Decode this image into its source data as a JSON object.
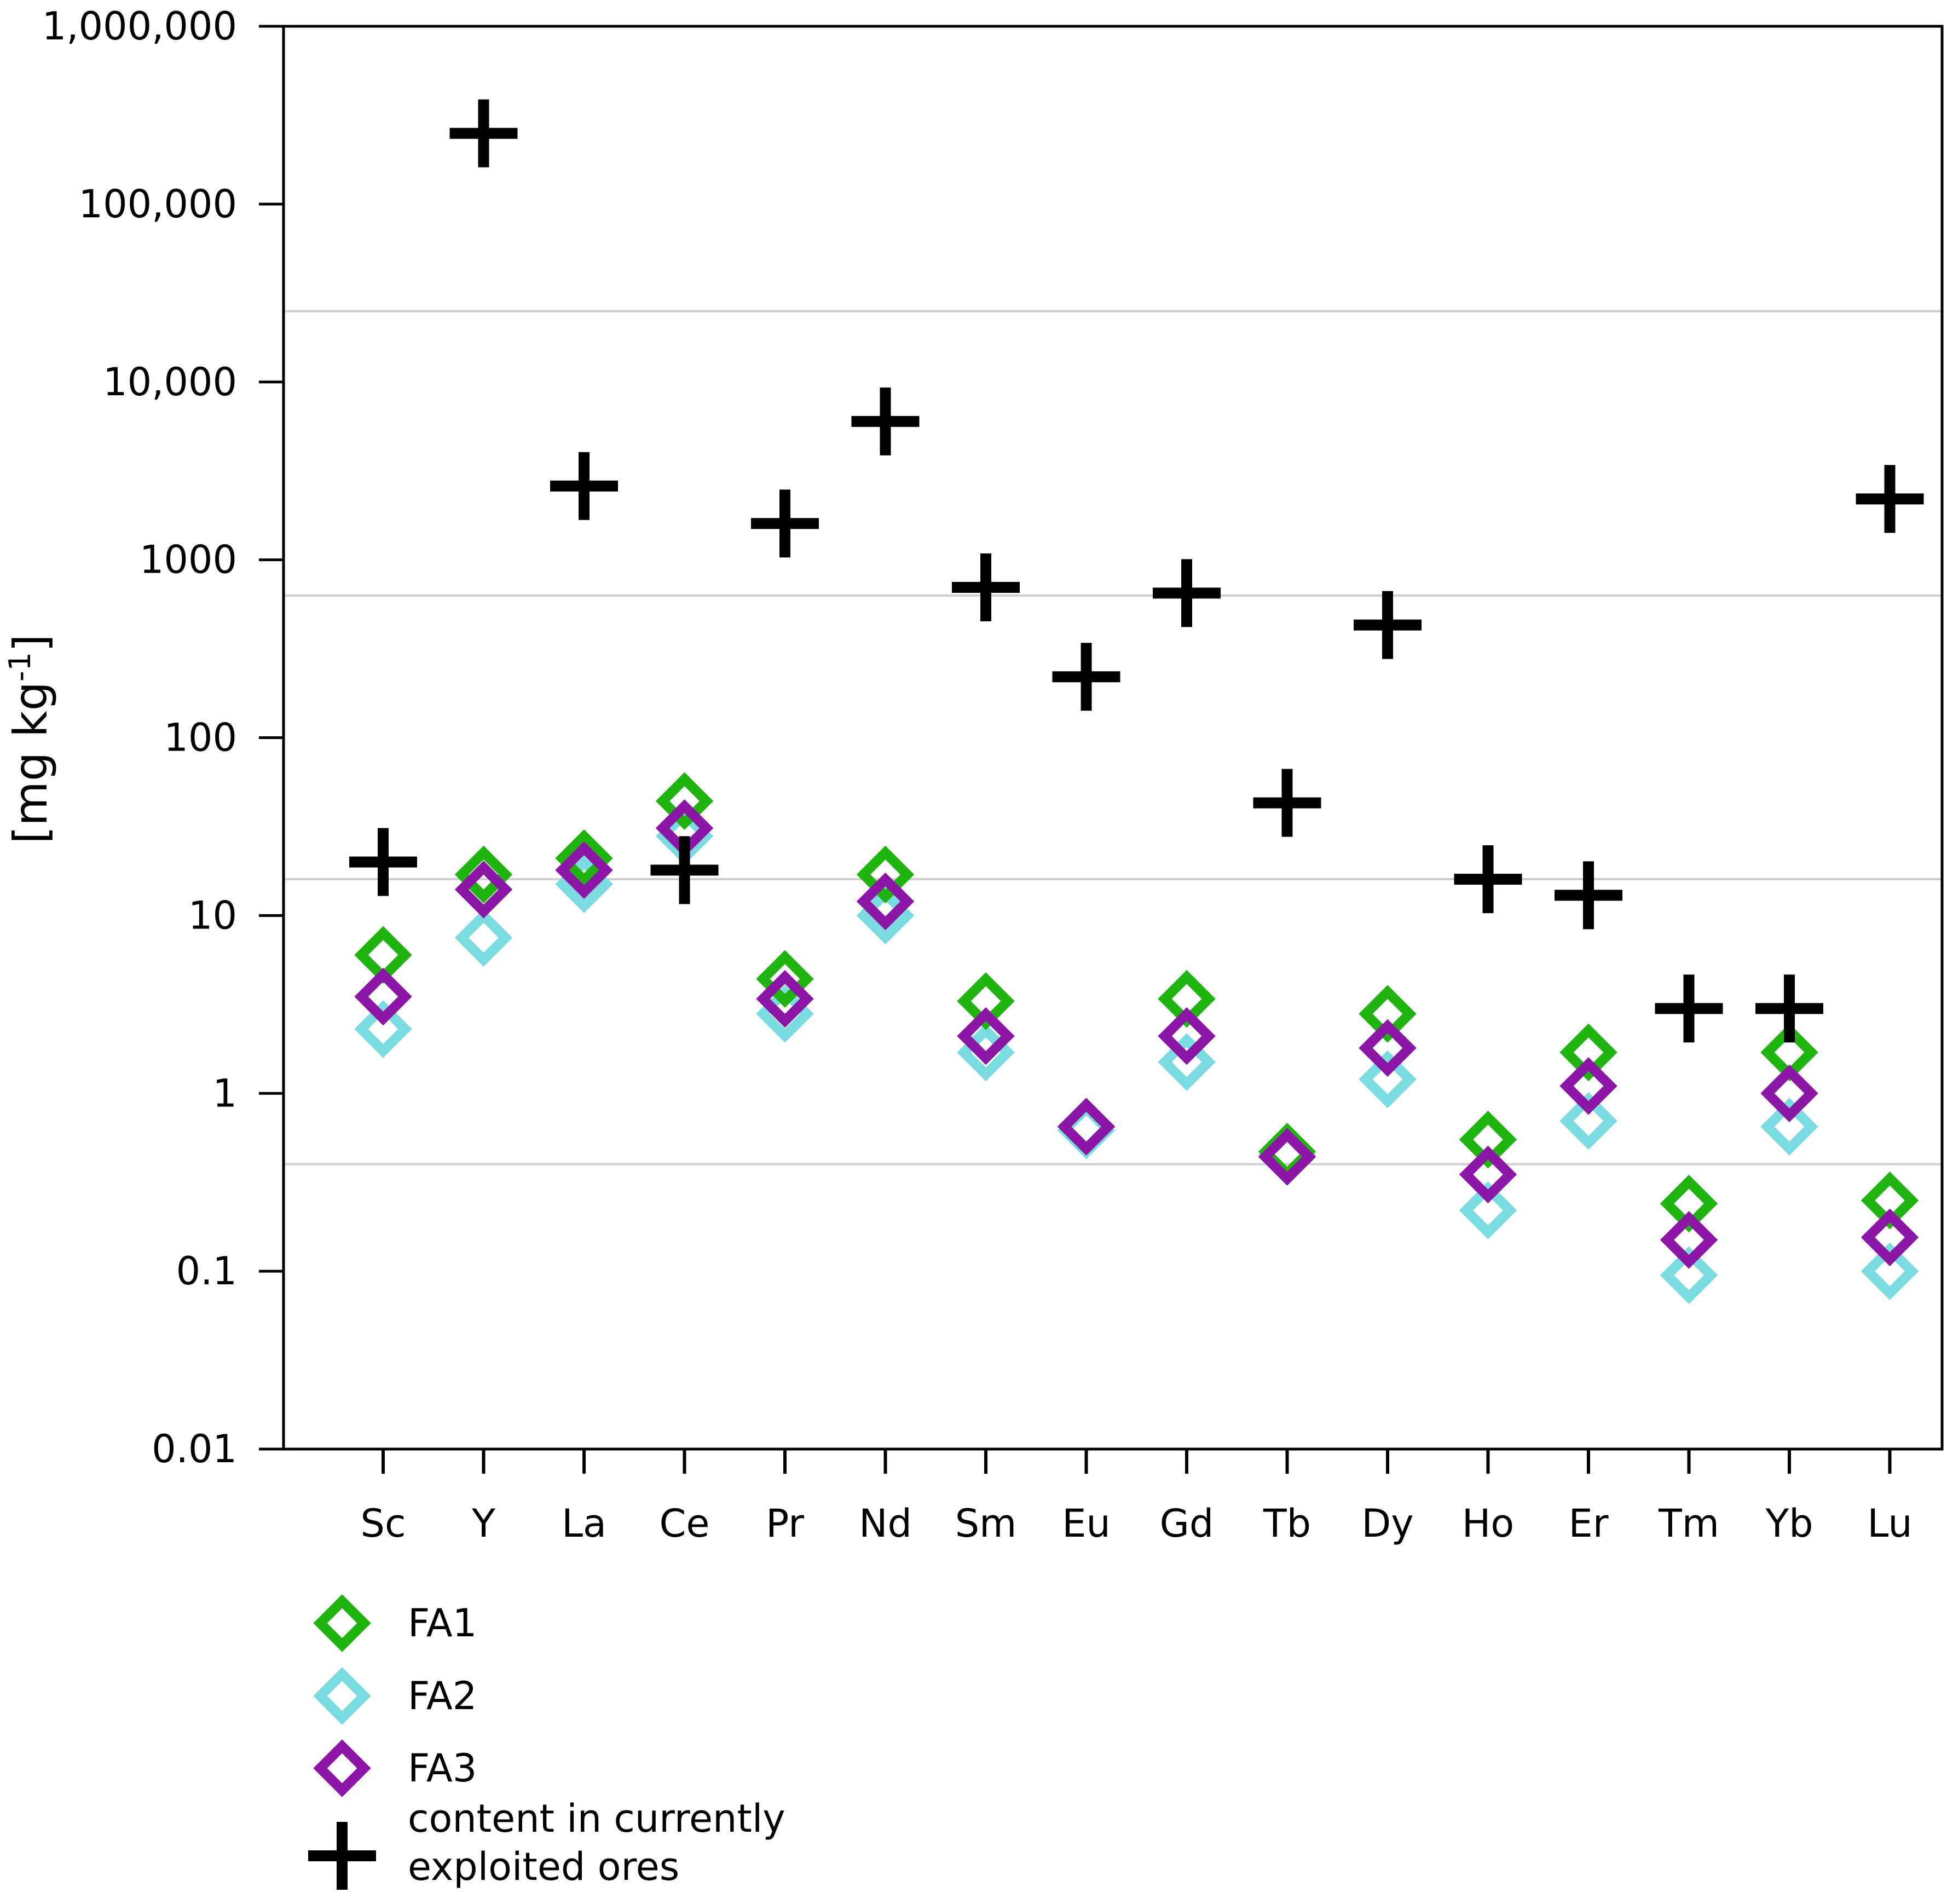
{
  "chart_data": {
    "type": "scatter",
    "title": "",
    "xlabel": "",
    "ylabel": "[mg kg-1]",
    "ylabel_parts": {
      "main": "[mg kg",
      "sup": "-1",
      "close": "]"
    },
    "yscale": "log",
    "ylim": [
      0.01,
      1000000
    ],
    "y_ticks": [
      {
        "value": 0.01,
        "label": "0.01"
      },
      {
        "value": 0.1,
        "label": "0.1"
      },
      {
        "value": 1,
        "label": "1"
      },
      {
        "value": 10,
        "label": "10"
      },
      {
        "value": 100,
        "label": "100"
      },
      {
        "value": 1000,
        "label": "1000"
      },
      {
        "value": 10000,
        "label": "10,000"
      },
      {
        "value": 100000,
        "label": "100,000"
      },
      {
        "value": 1000000,
        "label": "1,000,000"
      }
    ],
    "gridlines": [
      0.4,
      16,
      630,
      25000
    ],
    "categories": [
      "Sc",
      "Y",
      "La",
      "Ce",
      "Pr",
      "Nd",
      "Sm",
      "Eu",
      "Gd",
      "Tb",
      "Dy",
      "Ho",
      "Er",
      "Tm",
      "Yb",
      "Lu"
    ],
    "series": [
      {
        "name": "FA1",
        "marker": "diamond",
        "color": "#1fb40f",
        "values": [
          6,
          17,
          21,
          44,
          4.4,
          17,
          3.3,
          0.65,
          3.4,
          0.47,
          2.8,
          0.55,
          1.7,
          0.24,
          1.7,
          0.25
        ]
      },
      {
        "name": "FA2",
        "marker": "diamond",
        "color": "#7adce0",
        "values": [
          2.3,
          7.5,
          15,
          28,
          2.8,
          10,
          1.7,
          0.62,
          1.5,
          0.45,
          1.2,
          0.22,
          0.7,
          0.095,
          0.65,
          0.1
        ]
      },
      {
        "name": "FA3",
        "marker": "diamond",
        "color": "#8c17a6",
        "values": [
          3.5,
          14,
          18,
          31,
          3.4,
          12,
          2.1,
          0.65,
          2.1,
          0.44,
          1.8,
          0.35,
          1.1,
          0.15,
          1.0,
          0.155
        ]
      },
      {
        "name": "content in currently exploited ores",
        "marker": "plus",
        "color": "#000000",
        "values": [
          20,
          250000,
          2600,
          18,
          1600,
          6000,
          700,
          220,
          650,
          43,
          430,
          16,
          13,
          3,
          3,
          2200
        ]
      }
    ],
    "legend": {
      "position": "bottom-left",
      "entries": [
        {
          "series": 0,
          "lines": [
            "FA1"
          ]
        },
        {
          "series": 1,
          "lines": [
            "FA2"
          ]
        },
        {
          "series": 2,
          "lines": [
            "FA3"
          ]
        },
        {
          "series": 3,
          "lines": [
            "content in currently",
            "exploited ores"
          ]
        }
      ]
    }
  }
}
